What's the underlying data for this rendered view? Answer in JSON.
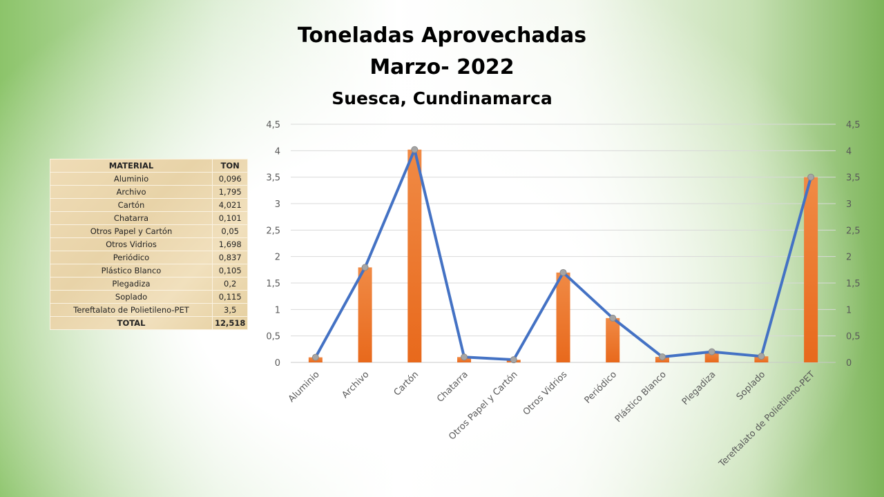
{
  "chart_data": {
    "type": "bar",
    "title": "Toneladas Aprovechadas",
    "subtitle": "Marzo- 2022",
    "subtitle2": "Suesca, Cundinamarca",
    "categories": [
      "Aluminio",
      "Archivo",
      "Cartón",
      "Chatarra",
      "Otros Papel y Cartón",
      "Otros Vidrios",
      "Periódico",
      "Plástico Blanco",
      "Plegadiza",
      "Soplado",
      "Tereftalato de Polietileno-PET"
    ],
    "series": [
      {
        "name": "TON (bar)",
        "type": "bar",
        "color": "#ed7d31",
        "values": [
          0.096,
          1.795,
          4.021,
          0.101,
          0.05,
          1.698,
          0.837,
          0.105,
          0.2,
          0.115,
          3.5
        ]
      },
      {
        "name": "TON (line)",
        "type": "line",
        "color": "#4472c4",
        "values": [
          0.096,
          1.795,
          4.021,
          0.101,
          0.05,
          1.698,
          0.837,
          0.105,
          0.2,
          0.115,
          3.5
        ]
      }
    ],
    "ylim": [
      0,
      4.5
    ],
    "yticks": [
      "0",
      "0,5",
      "1",
      "1,5",
      "2",
      "2,5",
      "3",
      "3,5",
      "4",
      "4,5"
    ],
    "secondary_y": true,
    "grid": true,
    "xlabel": "",
    "ylabel": ""
  },
  "table": {
    "headers": [
      "MATERIAL",
      "TON"
    ],
    "rows": [
      [
        "Aluminio",
        "0,096"
      ],
      [
        "Archivo",
        "1,795"
      ],
      [
        "Cartón",
        "4,021"
      ],
      [
        "Chatarra",
        "0,101"
      ],
      [
        "Otros Papel y Cartón",
        "0,05"
      ],
      [
        "Otros Vidrios",
        "1,698"
      ],
      [
        "Periódico",
        "0,837"
      ],
      [
        "Plástico Blanco",
        "0,105"
      ],
      [
        "Plegadiza",
        "0,2"
      ],
      [
        "Soplado",
        "0,115"
      ],
      [
        "Tereftalato de Polietileno-PET",
        "3,5"
      ]
    ],
    "total": [
      "TOTAL",
      "12,518"
    ]
  }
}
